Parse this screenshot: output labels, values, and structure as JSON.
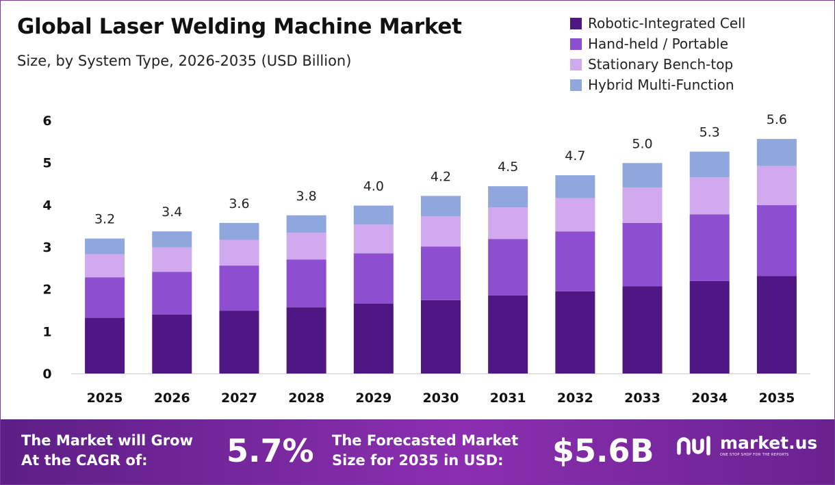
{
  "header": {
    "title": "Global Laser Welding Machine Market",
    "subtitle": "Size, by System Type, 2026-2035 (USD Billion)"
  },
  "colors": {
    "robotic": "#4f1783",
    "handheld": "#8d4fcf",
    "stationary": "#d1a9ee",
    "hybrid": "#8fa7dd",
    "footer_start": "#5d1e86",
    "footer_end": "#8b2fb0"
  },
  "chart_data": {
    "type": "bar",
    "stacked": true,
    "categories": [
      "2025",
      "2026",
      "2027",
      "2028",
      "2029",
      "2030",
      "2031",
      "2032",
      "2033",
      "2034",
      "2035"
    ],
    "series": [
      {
        "name": "Robotic-Integrated Cell",
        "color": "#4f1783",
        "values": [
          1.32,
          1.4,
          1.49,
          1.57,
          1.66,
          1.74,
          1.85,
          1.95,
          2.07,
          2.19,
          2.31
        ]
      },
      {
        "name": "Hand-held / Portable",
        "color": "#8d4fcf",
        "values": [
          0.96,
          1.01,
          1.07,
          1.13,
          1.19,
          1.27,
          1.34,
          1.42,
          1.5,
          1.58,
          1.68
        ]
      },
      {
        "name": "Stationary Bench-top",
        "color": "#d1a9ee",
        "values": [
          0.55,
          0.58,
          0.61,
          0.64,
          0.68,
          0.72,
          0.75,
          0.79,
          0.84,
          0.88,
          0.93
        ]
      },
      {
        "name": "Hybrid Multi-Function",
        "color": "#8fa7dd",
        "values": [
          0.37,
          0.38,
          0.4,
          0.41,
          0.45,
          0.48,
          0.5,
          0.54,
          0.58,
          0.61,
          0.64
        ]
      }
    ],
    "totals": [
      "3.2",
      "3.4",
      "3.6",
      "3.8",
      "4.0",
      "4.2",
      "4.5",
      "4.7",
      "5.0",
      "5.3",
      "5.6"
    ],
    "y_ticks": [
      "0",
      "1",
      "2",
      "3",
      "4",
      "5",
      "6"
    ],
    "ylim": [
      0,
      6
    ],
    "grid": false,
    "legend_position": "top-right",
    "title": "Global Laser Welding Machine Market",
    "subtitle": "Size, by System Type, 2026-2035 (USD Billion)",
    "xlabel": "",
    "ylabel": ""
  },
  "footer": {
    "cagr_line1": "The Market will Grow",
    "cagr_line2": "At the CAGR of:",
    "cagr_value": "5.7%",
    "size_line1": "The Forecasted Market",
    "size_line2": "Size for 2035 in USD:",
    "size_value": "$5.6B",
    "brand_name": "market.us",
    "brand_tagline": "ONE STOP SHOP FOR THE REPORTS",
    "brand_icon": "market-us-logo-icon"
  }
}
